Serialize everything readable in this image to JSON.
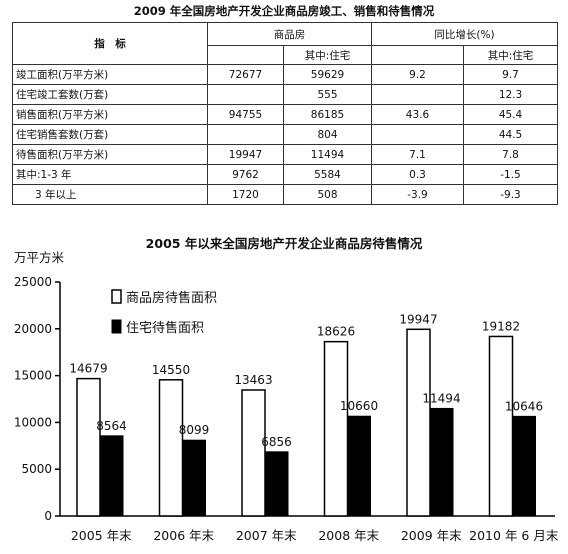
{
  "table": {
    "title": "2009 年全国房地产开发企业商品房竣工、销售和待售情况",
    "headers": {
      "indicator": "指　标",
      "commercial": "商品房",
      "commercial_residential": "其中:住宅",
      "yoy": "同比增长(%)",
      "yoy_residential": "其中:住宅"
    },
    "rows": [
      {
        "label": "竣工面积(万平方米)",
        "commercial": "72677",
        "residential": "59629",
        "yoy": "9.2",
        "yoy_residential": "9.7"
      },
      {
        "label": "住宅竣工套数(万套)",
        "commercial": "",
        "residential": "555",
        "yoy": "",
        "yoy_residential": "12.3"
      },
      {
        "label": "销售面积(万平方米)",
        "commercial": "94755",
        "residential": "86185",
        "yoy": "43.6",
        "yoy_residential": "45.4"
      },
      {
        "label": "住宅销售套数(万套)",
        "commercial": "",
        "residential": "804",
        "yoy": "",
        "yoy_residential": "44.5"
      },
      {
        "label": "待售面积(万平方米)",
        "commercial": "19947",
        "residential": "11494",
        "yoy": "7.1",
        "yoy_residential": "7.8"
      },
      {
        "label": "其中:1-3 年",
        "commercial": "9762",
        "residential": "5584",
        "yoy": "0.3",
        "yoy_residential": "-1.5"
      },
      {
        "label": "3 年以上",
        "commercial": "1720",
        "residential": "508",
        "yoy": "-3.9",
        "yoy_residential": "-9.3"
      }
    ]
  },
  "chart_data": {
    "type": "bar",
    "title": "2005 年以来全国房地产开发企业商品房待售情况",
    "ylabel": "万平方米",
    "xlabel": "",
    "categories": [
      "2005 年末",
      "2006 年末",
      "2007 年末",
      "2008 年末",
      "2009 年末",
      "2010 年 6 月末"
    ],
    "series": [
      {
        "name": "商品房待售面积",
        "values": [
          14679,
          14550,
          13463,
          18626,
          19947,
          19182
        ],
        "color": "#ffffff"
      },
      {
        "name": "住宅待售面积",
        "values": [
          8564,
          8099,
          6856,
          10660,
          11494,
          10646
        ],
        "color": "#000000"
      }
    ],
    "ylim": [
      0,
      25000
    ],
    "yticks": [
      0,
      5000,
      10000,
      15000,
      20000,
      25000
    ],
    "grid": false,
    "legend_position": "top-left"
  }
}
